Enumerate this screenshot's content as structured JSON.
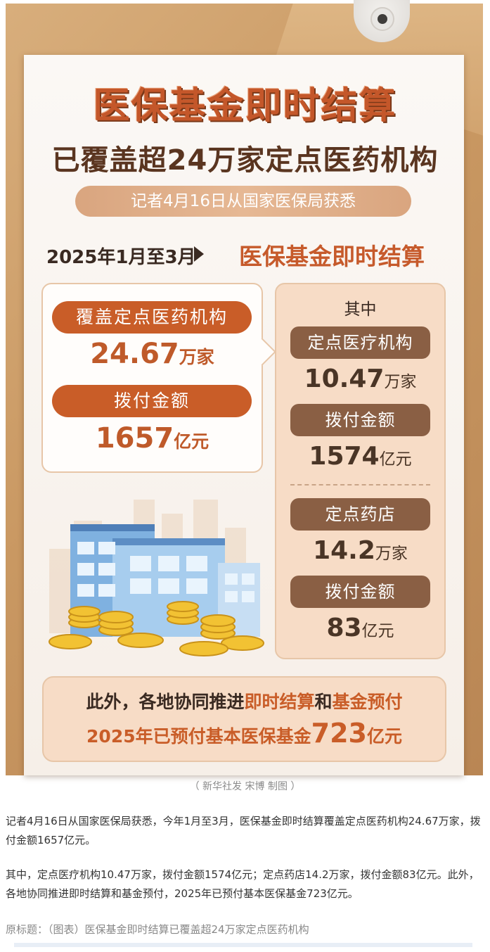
{
  "poster": {
    "title_main": "医保基金即时结算",
    "title_sub": "已覆盖超24万家定点医药机构",
    "source_pill": "记者4月16日从国家医保局获悉",
    "period_label": "2025年1月至3月",
    "period_title": "医保基金即时结算",
    "left_card": {
      "coverage_label": "覆盖定点医药机构",
      "coverage_value": "24.67",
      "coverage_unit": "万家",
      "payment_label": "拨付金额",
      "payment_value": "1657",
      "payment_unit": "亿元"
    },
    "right_card": {
      "header": "其中",
      "medical_label": "定点医疗机构",
      "medical_value": "10.47",
      "medical_unit": "万家",
      "medical_payment_label": "拨付金额",
      "medical_payment_value": "1574",
      "medical_payment_unit": "亿元",
      "pharmacy_label": "定点药店",
      "pharmacy_value": "14.2",
      "pharmacy_unit": "万家",
      "pharmacy_payment_label": "拨付金额",
      "pharmacy_payment_value": "83",
      "pharmacy_payment_unit": "亿元"
    },
    "bottom": {
      "line1_prefix": "此外，各地协同推进",
      "line1_hl1": "即时结算",
      "line1_mid": "和",
      "line1_hl2": "基金预付",
      "line2_prefix": "2025年已预付基本医保基金",
      "line2_value": "723",
      "line2_unit": "亿元"
    }
  },
  "caption": "（ 新华社发 宋博 制图 ）",
  "article": {
    "para1": "记者4月16日从国家医保局获悉，今年1月至3月，医保基金即时结算覆盖定点医药机构24.67万家，拨付金额1657亿元。",
    "para2": "其中，定点医疗机构10.47万家，拨付金额1574亿元；定点药店14.2万家，拨付金额83亿元。此外，各地协同推进即时结算和基金预付，2025年已预付基本医保基金723亿元。",
    "original_title": "原标题：（图表）医保基金即时结算已覆盖超24万家定点医药机构"
  }
}
